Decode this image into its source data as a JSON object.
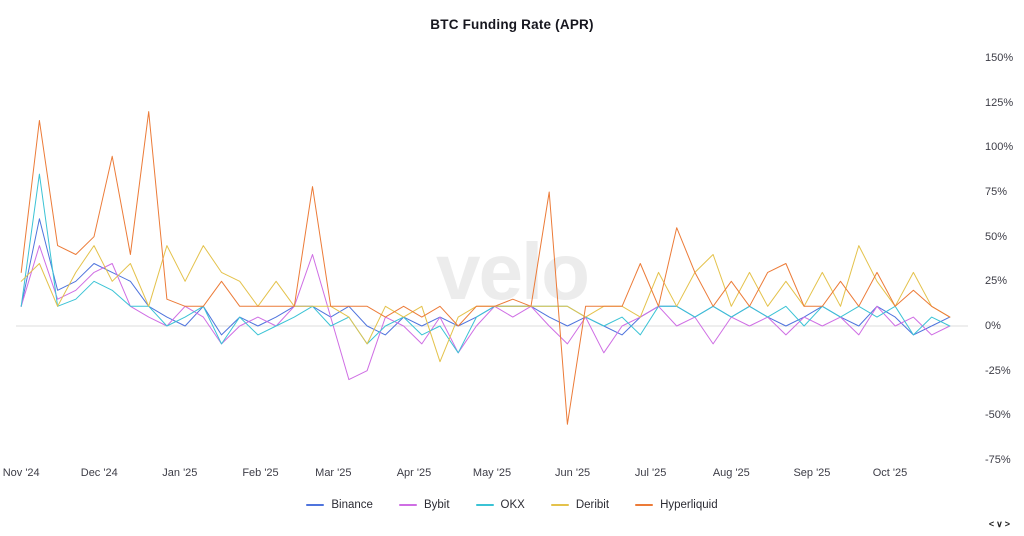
{
  "watermark": "velo",
  "footer": {
    "controls": "<∨>"
  },
  "chart_data": {
    "type": "line",
    "title": "BTC Funding Rate (APR)",
    "xlabel": "",
    "ylabel": "",
    "ylim": [
      -75,
      150
    ],
    "ytick_step": 25,
    "ytick_format": "percent",
    "grid": "zero-line-only",
    "legend_position": "bottom",
    "x_domain_days": [
      0,
      366
    ],
    "x_week_start_day": 2,
    "x_week_step_days": 7,
    "x_ticks": [
      {
        "label": "Nov '24",
        "day": 2
      },
      {
        "label": "Dec '24",
        "day": 32
      },
      {
        "label": "Jan '25",
        "day": 63
      },
      {
        "label": "Feb '25",
        "day": 94
      },
      {
        "label": "Mar '25",
        "day": 122
      },
      {
        "label": "Apr '25",
        "day": 153
      },
      {
        "label": "May '25",
        "day": 183
      },
      {
        "label": "Jun '25",
        "day": 214
      },
      {
        "label": "Jul '25",
        "day": 244
      },
      {
        "label": "Aug '25",
        "day": 275
      },
      {
        "label": "Sep '25",
        "day": 306
      },
      {
        "label": "Oct '25",
        "day": 336
      }
    ],
    "series": [
      {
        "name": "Binance",
        "color": "#4f74dd",
        "values": [
          11,
          60,
          20,
          25,
          35,
          30,
          25,
          11,
          5,
          0,
          11,
          -5,
          5,
          0,
          5,
          11,
          11,
          5,
          11,
          0,
          -5,
          5,
          0,
          5,
          0,
          5,
          11,
          11,
          11,
          5,
          0,
          5,
          0,
          -5,
          5,
          11,
          11,
          5,
          11,
          5,
          11,
          5,
          0,
          5,
          11,
          5,
          0,
          11,
          5,
          -5,
          0,
          5
        ]
      },
      {
        "name": "Bybit",
        "color": "#cf6ee4",
        "values": [
          11,
          45,
          15,
          20,
          30,
          35,
          11,
          5,
          0,
          11,
          5,
          -10,
          0,
          5,
          0,
          11,
          40,
          5,
          -30,
          -25,
          5,
          0,
          -10,
          5,
          -15,
          0,
          11,
          5,
          11,
          0,
          -10,
          5,
          -15,
          0,
          5,
          11,
          0,
          5,
          -10,
          5,
          0,
          5,
          -5,
          5,
          0,
          5,
          -5,
          11,
          0,
          5,
          -5,
          0
        ]
      },
      {
        "name": "OKX",
        "color": "#3bc3d5",
        "values": [
          11,
          85,
          11,
          15,
          25,
          20,
          11,
          11,
          0,
          5,
          11,
          -10,
          5,
          -5,
          0,
          5,
          11,
          0,
          5,
          -10,
          0,
          5,
          -5,
          0,
          -15,
          5,
          11,
          11,
          11,
          11,
          11,
          5,
          0,
          5,
          -5,
          11,
          11,
          5,
          11,
          5,
          11,
          5,
          11,
          0,
          11,
          5,
          11,
          5,
          11,
          -5,
          5,
          0
        ]
      },
      {
        "name": "Deribit",
        "color": "#e4c24b",
        "values": [
          25,
          35,
          11,
          30,
          45,
          25,
          35,
          11,
          45,
          25,
          45,
          30,
          25,
          11,
          25,
          11,
          11,
          11,
          5,
          -10,
          11,
          5,
          11,
          -20,
          5,
          11,
          11,
          11,
          11,
          11,
          11,
          5,
          11,
          11,
          5,
          30,
          11,
          30,
          40,
          11,
          30,
          11,
          25,
          11,
          30,
          11,
          45,
          25,
          11,
          30,
          11,
          5
        ]
      },
      {
        "name": "Hyperliquid",
        "color": "#ec7b38",
        "values": [
          30,
          115,
          45,
          40,
          50,
          95,
          40,
          120,
          15,
          11,
          11,
          25,
          11,
          11,
          11,
          11,
          78,
          11,
          11,
          11,
          5,
          11,
          5,
          11,
          0,
          11,
          11,
          15,
          11,
          75,
          -55,
          11,
          11,
          11,
          35,
          11,
          55,
          30,
          11,
          25,
          11,
          30,
          35,
          11,
          11,
          25,
          11,
          30,
          11,
          20,
          11,
          5
        ]
      }
    ],
    "colors": {
      "zero_line": "#dcdcdc",
      "axis_text": "#3c3c46",
      "title_text": "#17171f",
      "watermark": "#ececec"
    }
  }
}
